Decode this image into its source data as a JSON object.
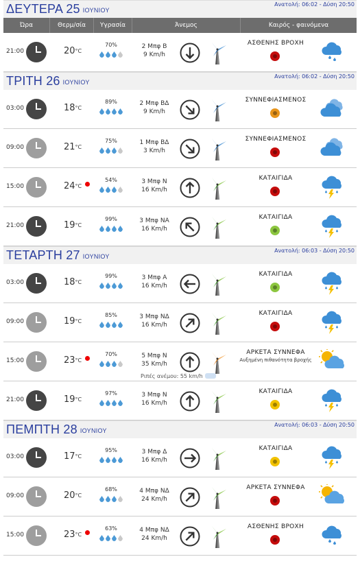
{
  "colors": {
    "accent": "#2a3e9e",
    "header_bg": "#6d6d6d"
  },
  "columns": {
    "time": "Ώρα",
    "temp": "Θερμ/σία",
    "humidity": "Υγρασία",
    "wind": "Άνεμος",
    "weather": "Καιρός - φαινόμενα"
  },
  "days": [
    {
      "name": "ΔΕΥΤΕΡΑ 25",
      "month": "ΙΟΥΝΙΟΥ",
      "sun": "Ανατολή: 06:02 - Δύση 20:50",
      "rows": [
        {
          "time": "21:00",
          "clock": "dark",
          "temp": "20",
          "hot": false,
          "hum": "70%",
          "drops": 3,
          "wind1": "2 Μπφ Β",
          "wind2": "9 Km/h",
          "dir": 180,
          "turbine": "blue",
          "sky": "ΑΣΘΕΝΗΣ ΒΡΟΧΗ",
          "bug": "red",
          "icon": "rain"
        }
      ]
    },
    {
      "name": "ΤΡΙΤΗ 26",
      "month": "ΙΟΥΝΙΟΥ",
      "sun": "Ανατολή: 06:02 - Δύση 20:50",
      "rows": [
        {
          "time": "03:00",
          "clock": "dark",
          "temp": "18",
          "hot": false,
          "hum": "89%",
          "drops": 4,
          "wind1": "2 Μπφ ΒΔ",
          "wind2": "9 Km/h",
          "dir": 135,
          "turbine": "blue",
          "sky": "ΣΥΝΝΕΦΙΑΣΜΕΝΟΣ",
          "bug": "orange",
          "icon": "clouds"
        },
        {
          "time": "09:00",
          "clock": "light",
          "temp": "21",
          "hot": false,
          "hum": "75%",
          "drops": 3,
          "wind1": "1 Μπφ ΒΔ",
          "wind2": "3 Km/h",
          "dir": 135,
          "turbine": "blue",
          "sky": "ΣΥΝΝΕΦΙΑΣΜΕΝΟΣ",
          "bug": "red",
          "icon": "clouds"
        },
        {
          "time": "15:00",
          "clock": "light",
          "temp": "24",
          "hot": true,
          "hum": "54%",
          "drops": 3,
          "wind1": "3 Μπφ Ν",
          "wind2": "16 Km/h",
          "dir": 0,
          "turbine": "green",
          "sky": "ΚΑΤΑΙΓΙΔΑ",
          "bug": "red",
          "icon": "storm"
        },
        {
          "time": "21:00",
          "clock": "dark",
          "temp": "19",
          "hot": false,
          "hum": "99%",
          "drops": 4,
          "wind1": "3 Μπφ ΝΑ",
          "wind2": "16 Km/h",
          "dir": -45,
          "turbine": "green",
          "sky": "ΚΑΤΑΙΓΙΔΑ",
          "bug": "green",
          "icon": "storm"
        }
      ]
    },
    {
      "name": "ΤΕΤΑΡΤΗ 27",
      "month": "ΙΟΥΝΙΟΥ",
      "sun": "Ανατολή: 06:03 - Δύση 20:50",
      "rows": [
        {
          "time": "03:00",
          "clock": "dark",
          "temp": "18",
          "hot": false,
          "hum": "99%",
          "drops": 4,
          "wind1": "3 Μπφ Α",
          "wind2": "16 Km/h",
          "dir": -90,
          "turbine": "green",
          "sky": "ΚΑΤΑΙΓΙΔΑ",
          "bug": "green",
          "icon": "storm"
        },
        {
          "time": "09:00",
          "clock": "light",
          "temp": "19",
          "hot": false,
          "hum": "85%",
          "drops": 4,
          "wind1": "3 Μπφ ΝΔ",
          "wind2": "16 Km/h",
          "dir": 45,
          "turbine": "green",
          "sky": "ΚΑΤΑΙΓΙΔΑ",
          "bug": "red",
          "icon": "storm"
        },
        {
          "time": "15:00",
          "clock": "light",
          "temp": "23",
          "hot": true,
          "hum": "70%",
          "drops": 3,
          "wind1": "5 Μπφ Ν",
          "wind2": "35 Km/h",
          "dir": 0,
          "turbine": "orange",
          "sky": "ΑΡΚΕΤΑ ΣΥΝΝΕΦΑ",
          "sky2": "Αυξημένη πιθανότητα βροχής",
          "gust": "Ριπές ανέμου: 55 km/h",
          "bug": "",
          "icon": "sunclouds"
        },
        {
          "time": "21:00",
          "clock": "dark",
          "temp": "19",
          "hot": false,
          "hum": "97%",
          "drops": 4,
          "wind1": "3 Μπφ Ν",
          "wind2": "16 Km/h",
          "dir": 0,
          "turbine": "green",
          "sky": "ΚΑΤΑΙΓΙΔΑ",
          "bug": "yellow",
          "icon": "storm"
        }
      ]
    },
    {
      "name": "ΠΕΜΠΤΗ 28",
      "month": "ΙΟΥΝΙΟΥ",
      "sun": "Ανατολή: 06:03 - Δύση 20:50",
      "rows": [
        {
          "time": "03:00",
          "clock": "dark",
          "temp": "17",
          "hot": false,
          "hum": "95%",
          "drops": 4,
          "wind1": "3 Μπφ Δ",
          "wind2": "16 Km/h",
          "dir": 90,
          "turbine": "green",
          "sky": "ΚΑΤΑΙΓΙΔΑ",
          "bug": "yellow",
          "icon": "storm"
        },
        {
          "time": "09:00",
          "clock": "light",
          "temp": "20",
          "hot": false,
          "hum": "68%",
          "drops": 3,
          "wind1": "4 Μπφ ΝΔ",
          "wind2": "24 Km/h",
          "dir": 45,
          "turbine": "green",
          "sky": "ΑΡΚΕΤΑ ΣΥΝΝΕΦΑ",
          "bug": "red",
          "icon": "sunclouds"
        },
        {
          "time": "15:00",
          "clock": "light",
          "temp": "23",
          "hot": true,
          "hum": "63%",
          "drops": 3,
          "wind1": "4 Μπφ ΝΔ",
          "wind2": "24 Km/h",
          "dir": 45,
          "turbine": "green",
          "sky": "ΑΣΘΕΝΗΣ ΒΡΟΧΗ",
          "bug": "red",
          "icon": "rain"
        }
      ]
    }
  ]
}
